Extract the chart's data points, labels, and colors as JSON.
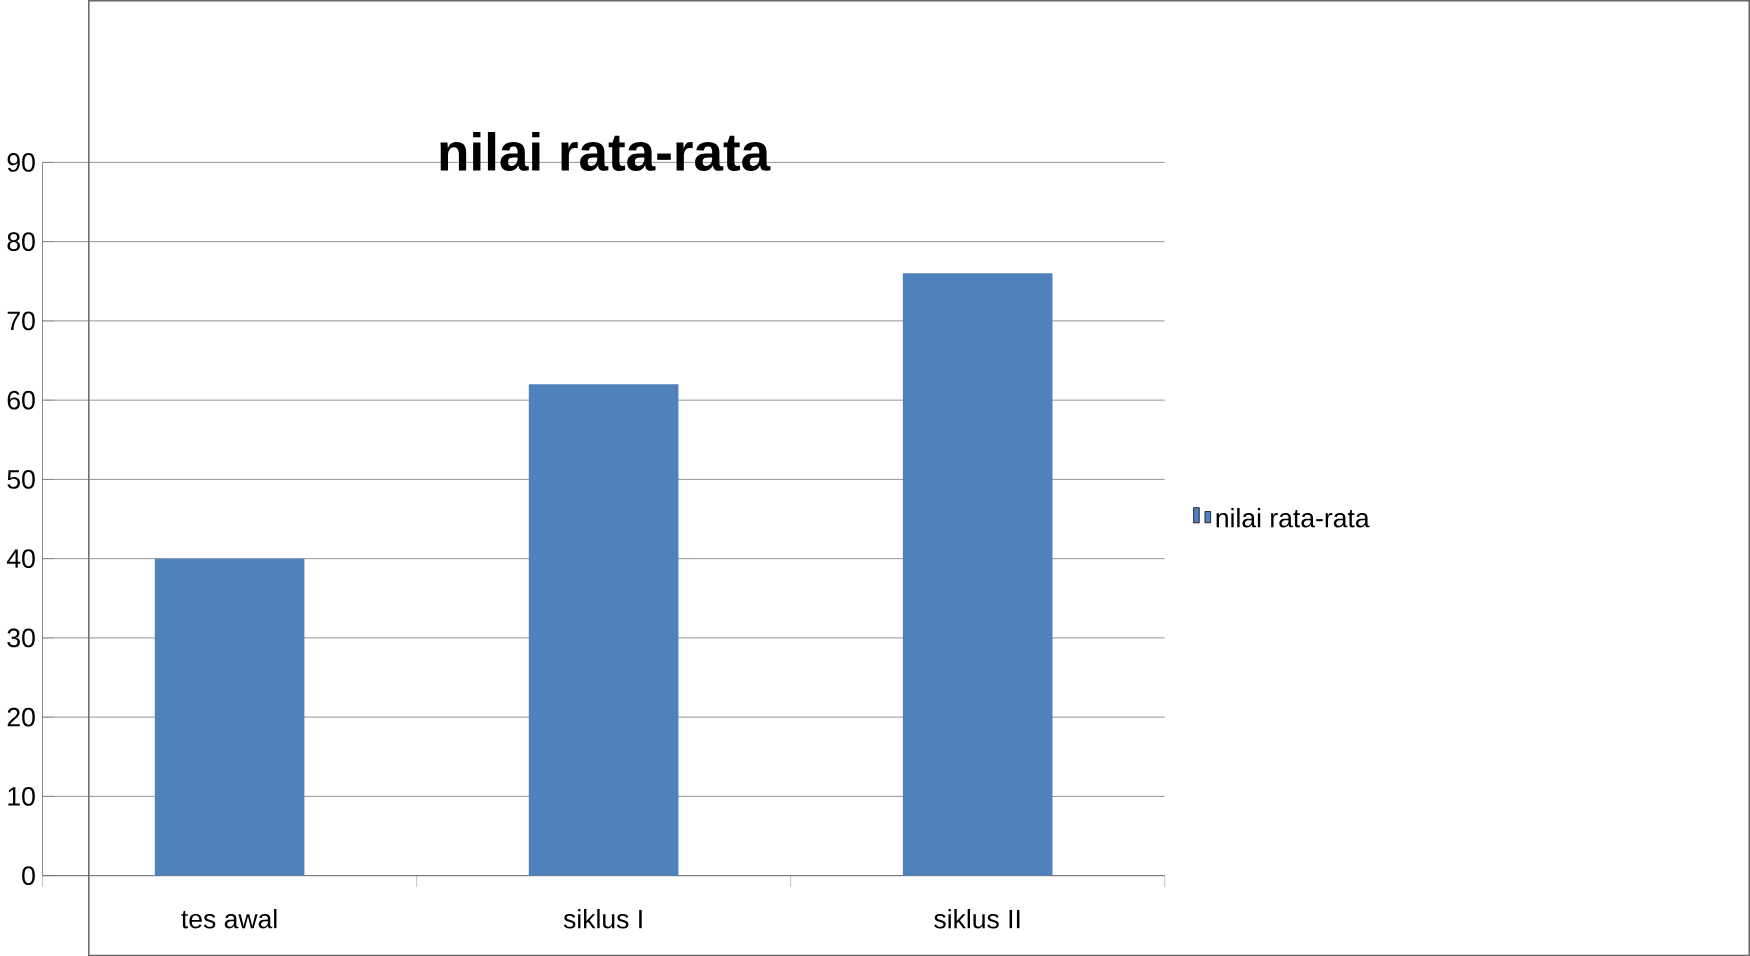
{
  "chart_data": {
    "type": "bar",
    "title": "nilai rata-rata",
    "categories": [
      "tes awal",
      "siklus I",
      "siklus II"
    ],
    "series": [
      {
        "name": "nilai rata-rata",
        "color": "#4f81bd",
        "values": [
          40,
          62,
          76
        ]
      }
    ],
    "ylim": [
      0,
      90
    ],
    "yticks": [
      0,
      10,
      20,
      30,
      40,
      50,
      60,
      70,
      80,
      90
    ],
    "grid": "y",
    "legend": "right"
  }
}
